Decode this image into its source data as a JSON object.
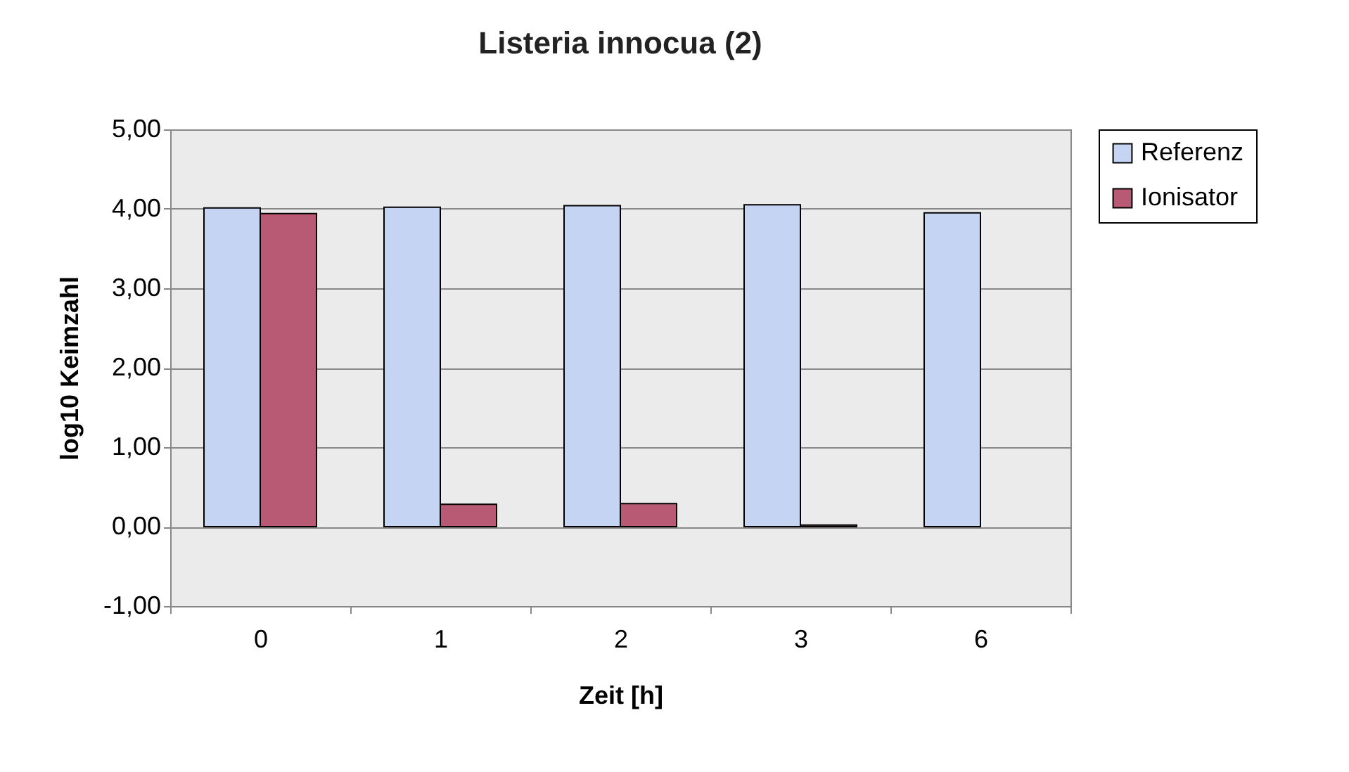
{
  "chart_data": {
    "type": "bar",
    "title": "Listeria innocua (2)",
    "xlabel": "Zeit [h]",
    "ylabel": "log10 Keimzahl",
    "categories": [
      "0",
      "1",
      "2",
      "3",
      "6"
    ],
    "series": [
      {
        "name": "Referenz",
        "color": "#c6d4f4",
        "values": [
          4.01,
          4.02,
          4.04,
          4.05,
          3.95
        ]
      },
      {
        "name": "Ionisator",
        "color": "#b85a74",
        "values": [
          3.94,
          0.28,
          0.29,
          0.02,
          null
        ]
      }
    ],
    "ylim": [
      -1,
      5
    ],
    "yticks": [
      {
        "value": -1,
        "label": "-1,00"
      },
      {
        "value": 0,
        "label": "0,00"
      },
      {
        "value": 1,
        "label": "1,00"
      },
      {
        "value": 2,
        "label": "2,00"
      },
      {
        "value": 3,
        "label": "3,00"
      },
      {
        "value": 4,
        "label": "4,00"
      },
      {
        "value": 5,
        "label": "5,00"
      }
    ],
    "grid": "y",
    "legend": "right"
  }
}
